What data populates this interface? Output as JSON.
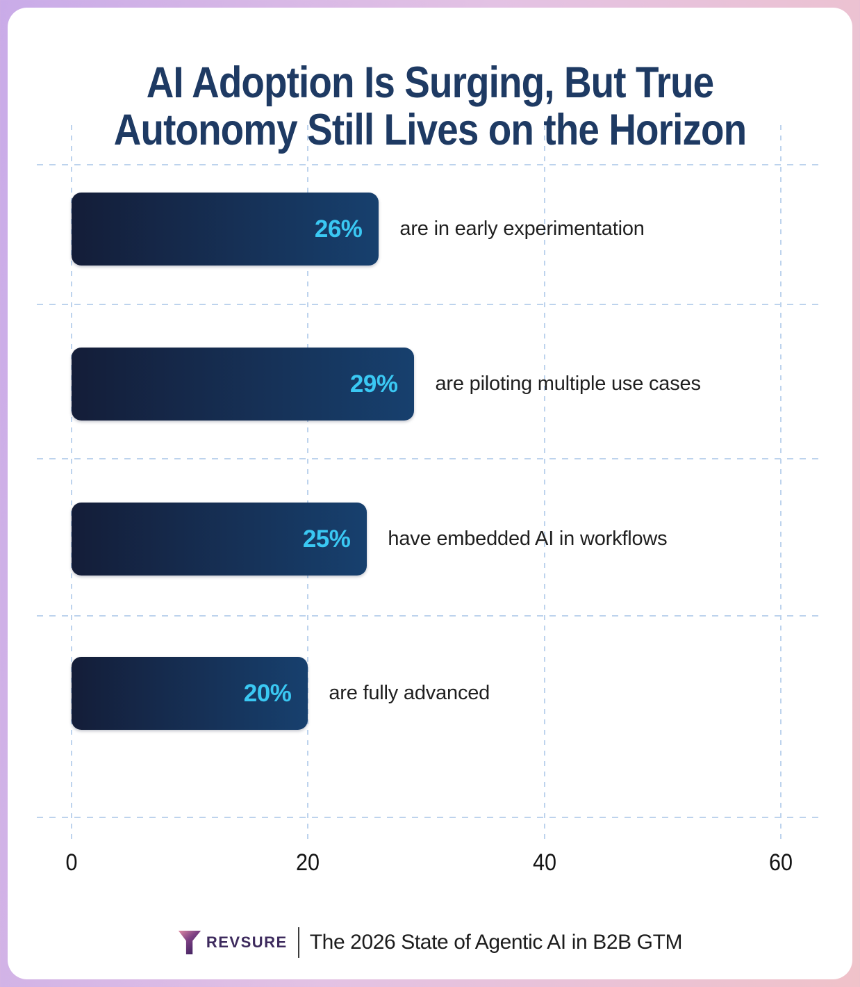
{
  "title": {
    "line1": "AI Adoption Is Surging, But True",
    "line2": "Autonomy Still Lives on the Horizon"
  },
  "chart_data": {
    "type": "bar",
    "orientation": "horizontal",
    "title": "AI Adoption Is Surging, But True Autonomy Still Lives on the Horizon",
    "categories": [
      "are in early experimentation",
      "are piloting multiple use cases",
      "have embedded AI in workflows",
      "are fully advanced"
    ],
    "values": [
      26,
      29,
      25,
      20
    ],
    "value_labels": [
      "26%",
      "29%",
      "25%",
      "20%"
    ],
    "xlabel": "",
    "ylabel": "",
    "xlim": [
      0,
      60
    ],
    "x_ticks": [
      0,
      20,
      40,
      60
    ],
    "grid": "dashed light-blue, horizontal band separators and vertical tick lines",
    "legend": "none",
    "bar_gradient": [
      "#141d38",
      "#17406e"
    ],
    "value_label_color": "#3ac8f3"
  },
  "rows": [
    {
      "value": 26,
      "pct": "26%",
      "label": "are in early experimentation"
    },
    {
      "value": 29,
      "pct": "29%",
      "label": "are piloting multiple use cases"
    },
    {
      "value": 25,
      "pct": "25%",
      "label": "have embedded AI in workflows"
    },
    {
      "value": 20,
      "pct": "20%",
      "label": "are fully advanced"
    }
  ],
  "axis": {
    "ticks": [
      "0",
      "20",
      "40",
      "60"
    ]
  },
  "footer": {
    "brand": "REVSURE",
    "caption": "The 2026 State of Agentic AI in B2B GTM"
  },
  "colors": {
    "title": "#1e3a63",
    "frame_gradient": [
      "#c9abe8",
      "#f0c2c9"
    ],
    "gridline": "#bdd3ed",
    "brand_purple": "#3d2a5d",
    "logo_pink": "#e08ba4",
    "logo_purple": "#3a1f5c"
  }
}
